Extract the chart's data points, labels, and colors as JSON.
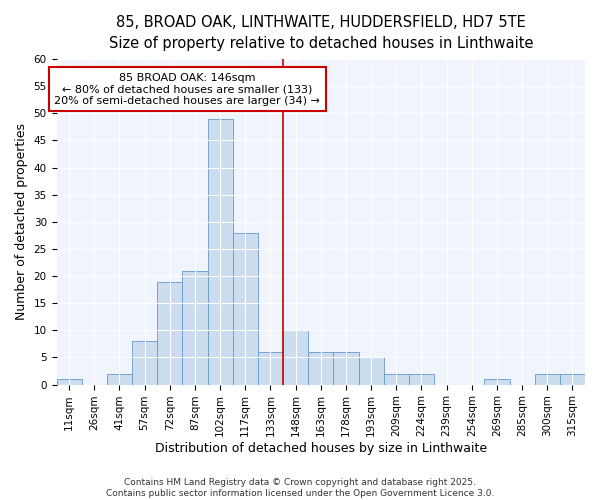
{
  "title_line1": "85, BROAD OAK, LINTHWAITE, HUDDERSFIELD, HD7 5TE",
  "title_line2": "Size of property relative to detached houses in Linthwaite",
  "xlabel": "Distribution of detached houses by size in Linthwaite",
  "ylabel": "Number of detached properties",
  "bar_labels": [
    "11sqm",
    "26sqm",
    "41sqm",
    "57sqm",
    "72sqm",
    "87sqm",
    "102sqm",
    "117sqm",
    "133sqm",
    "148sqm",
    "163sqm",
    "178sqm",
    "193sqm",
    "209sqm",
    "224sqm",
    "239sqm",
    "254sqm",
    "269sqm",
    "285sqm",
    "300sqm",
    "315sqm"
  ],
  "bar_values": [
    1,
    0,
    2,
    8,
    19,
    21,
    49,
    28,
    6,
    10,
    6,
    6,
    5,
    2,
    2,
    0,
    0,
    1,
    0,
    2,
    2
  ],
  "bar_color": "#ccddf0",
  "bar_edge_color": "#6699cc",
  "vline_x_index": 8.5,
  "vline_color": "#cc0000",
  "annotation_text_line1": "85 BROAD OAK: 146sqm",
  "annotation_text_line2": "← 80% of detached houses are smaller (133)",
  "annotation_text_line3": "20% of semi-detached houses are larger (34) →",
  "annotation_box_color": "#ffffff",
  "annotation_box_edge": "#cc0000",
  "ylim": [
    0,
    60
  ],
  "yticks": [
    0,
    5,
    10,
    15,
    20,
    25,
    30,
    35,
    40,
    45,
    50,
    55,
    60
  ],
  "background_color": "#ffffff",
  "plot_bg_color": "#f0f4fc",
  "grid_color": "#ffffff",
  "footer_text": "Contains HM Land Registry data © Crown copyright and database right 2025.\nContains public sector information licensed under the Open Government Licence 3.0.",
  "title_fontsize": 10.5,
  "subtitle_fontsize": 9.5,
  "axis_label_fontsize": 9,
  "tick_fontsize": 7.5,
  "annotation_fontsize": 8,
  "footer_fontsize": 6.5
}
